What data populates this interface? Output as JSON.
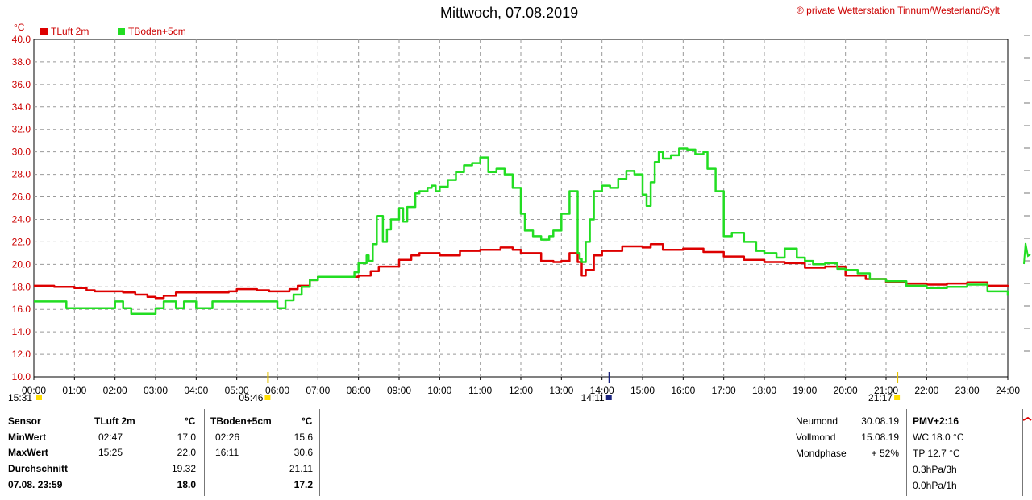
{
  "header": {
    "title": "Mittwoch, 07.08.2019",
    "copyright": "® private Wetterstation Tinnum/Westerland/Sylt"
  },
  "colors": {
    "tluft": "#dd0000",
    "tboden": "#22dd22",
    "grid": "#999999",
    "text_red": "#cc0000"
  },
  "chart_data": {
    "type": "line",
    "ylabel": "°C",
    "ylim": [
      10,
      40
    ],
    "yticks": [
      "10.0",
      "12.0",
      "14.0",
      "16.0",
      "18.0",
      "20.0",
      "22.0",
      "24.0",
      "26.0",
      "28.0",
      "30.0",
      "32.0",
      "34.0",
      "36.0",
      "38.0",
      "40.0"
    ],
    "xlim": [
      0,
      24
    ],
    "xticks": [
      "00:00",
      "01:00",
      "02:00",
      "03:00",
      "04:00",
      "05:00",
      "06:00",
      "07:00",
      "08:00",
      "09:00",
      "10:00",
      "11:00",
      "12:00",
      "13:00",
      "14:00",
      "15:00",
      "16:00",
      "17:00",
      "18:00",
      "19:00",
      "20:00",
      "21:00",
      "22:00",
      "23:00",
      "24:00"
    ],
    "grid": true,
    "legend_position": "top-left",
    "series": [
      {
        "name": "TLuft 2m",
        "color": "#dd0000",
        "x": [
          0,
          0.5,
          1,
          1.3,
          1.5,
          2,
          2.2,
          2.5,
          2.8,
          3,
          3.2,
          3.5,
          4,
          4.5,
          4.8,
          5,
          5.5,
          5.8,
          6,
          6.3,
          6.5,
          6.8,
          7,
          7.5,
          8,
          8.3,
          8.5,
          9,
          9.3,
          9.5,
          10,
          10.5,
          11,
          11.5,
          11.8,
          12,
          12.5,
          12.8,
          13,
          13.2,
          13.4,
          13.5,
          13.6,
          13.8,
          14,
          14.5,
          15,
          15.2,
          15.5,
          16,
          16.5,
          17,
          17.5,
          18,
          18.5,
          19,
          19.5,
          20,
          20.5,
          21,
          21.5,
          22,
          22.5,
          23,
          23.5,
          24
        ],
        "y": [
          18.1,
          18.0,
          17.9,
          17.7,
          17.6,
          17.6,
          17.5,
          17.3,
          17.1,
          17.0,
          17.2,
          17.5,
          17.5,
          17.5,
          17.6,
          17.8,
          17.7,
          17.6,
          17.6,
          17.8,
          18.1,
          18.6,
          18.9,
          18.9,
          19.0,
          19.4,
          19.8,
          20.4,
          20.8,
          21.0,
          20.8,
          21.2,
          21.3,
          21.5,
          21.3,
          21.0,
          20.3,
          20.2,
          20.3,
          21.0,
          20.2,
          19.0,
          19.5,
          20.8,
          21.2,
          21.6,
          21.5,
          21.8,
          21.3,
          21.4,
          21.1,
          20.7,
          20.4,
          20.2,
          20.1,
          19.7,
          19.8,
          19.0,
          18.7,
          18.4,
          18.3,
          18.2,
          18.3,
          18.4,
          18.1,
          18.0
        ]
      },
      {
        "name": "TBoden+5cm",
        "color": "#22dd22",
        "x": [
          0,
          0.7,
          0.8,
          1.2,
          1.5,
          2.0,
          2.2,
          2.4,
          2.8,
          3.0,
          3.2,
          3.5,
          3.7,
          4.0,
          4.2,
          4.4,
          5.0,
          5.5,
          5.8,
          6.0,
          6.2,
          6.4,
          6.6,
          6.8,
          7.0,
          7.5,
          7.8,
          7.9,
          8.0,
          8.1,
          8.2,
          8.25,
          8.35,
          8.45,
          8.6,
          8.7,
          8.8,
          9.0,
          9.1,
          9.2,
          9.4,
          9.5,
          9.7,
          9.8,
          9.9,
          10.0,
          10.2,
          10.4,
          10.6,
          10.8,
          11.0,
          11.2,
          11.4,
          11.6,
          11.8,
          12.0,
          12.1,
          12.3,
          12.5,
          12.7,
          12.8,
          13.0,
          13.2,
          13.4,
          13.45,
          13.5,
          13.6,
          13.7,
          13.8,
          14.0,
          14.2,
          14.4,
          14.6,
          14.8,
          15.0,
          15.1,
          15.2,
          15.3,
          15.4,
          15.5,
          15.7,
          15.9,
          16.1,
          16.3,
          16.5,
          16.6,
          16.8,
          17.0,
          17.2,
          17.5,
          17.8,
          18.0,
          18.3,
          18.5,
          18.8,
          19.0,
          19.2,
          19.5,
          19.8,
          20.0,
          20.3,
          20.6,
          21.0,
          21.5,
          22.0,
          22.5,
          23.0,
          23.5,
          24.0
        ],
        "y": [
          16.7,
          16.7,
          16.1,
          16.1,
          16.1,
          16.7,
          16.1,
          15.6,
          15.6,
          16.1,
          16.7,
          16.1,
          16.7,
          16.1,
          16.1,
          16.7,
          16.7,
          16.7,
          16.7,
          16.1,
          16.8,
          17.3,
          18.0,
          18.6,
          18.9,
          18.9,
          18.9,
          19.3,
          20.1,
          20.1,
          20.8,
          20.3,
          21.8,
          24.3,
          22.0,
          23.1,
          24.0,
          25.0,
          23.8,
          25.1,
          26.3,
          26.5,
          26.8,
          27.0,
          26.5,
          26.9,
          27.5,
          28.2,
          28.8,
          29.0,
          29.5,
          28.2,
          28.5,
          28.0,
          26.8,
          24.5,
          23.0,
          22.5,
          22.2,
          22.5,
          23.0,
          24.5,
          26.5,
          21.0,
          20.5,
          20.2,
          22.0,
          24.0,
          26.5,
          27.0,
          26.8,
          27.6,
          28.3,
          28.0,
          26.2,
          25.2,
          27.3,
          29.1,
          30.0,
          29.4,
          29.7,
          30.3,
          30.2,
          29.8,
          30.0,
          28.5,
          26.5,
          22.5,
          22.8,
          22.0,
          21.2,
          21.0,
          20.6,
          21.4,
          20.6,
          20.3,
          20.0,
          20.1,
          19.6,
          19.5,
          19.2,
          18.7,
          18.5,
          18.1,
          17.9,
          18.0,
          18.2,
          17.6,
          17.2
        ]
      }
    ],
    "markers": [
      {
        "time": "05:46",
        "pos": 5.77,
        "color": "#ffdd00"
      },
      {
        "time": "14:11",
        "pos": 14.18,
        "color": "#1a237e"
      },
      {
        "time": "21:17",
        "pos": 21.28,
        "color": "#ffdd00"
      }
    ],
    "left_time_label": "15:31"
  },
  "stats": {
    "sensor_label": "Sensor",
    "tluft_label": "TLuft 2m",
    "tboden_label": "TBoden+5cm",
    "unit": "°C",
    "rows": [
      {
        "label": "MinWert",
        "t1_time": "02:47",
        "t1_val": "17.0",
        "t2_time": "02:26",
        "t2_val": "15.6"
      },
      {
        "label": "MaxWert",
        "t1_time": "15:25",
        "t1_val": "22.0",
        "t2_time": "16:11",
        "t2_val": "30.6"
      },
      {
        "label": "Durchschnitt",
        "t1_time": "",
        "t1_val": "19.32",
        "t2_time": "",
        "t2_val": "21.11"
      },
      {
        "label": "07.08. 23:59",
        "t1_time": "",
        "t1_val": "18.0",
        "t2_time": "",
        "t2_val": "17.2"
      }
    ]
  },
  "moon": [
    {
      "label": "Neumond",
      "value": "30.08.19"
    },
    {
      "label": "Vollmond",
      "value": "15.08.19"
    },
    {
      "label": "Mondphase",
      "value": "+ 52%"
    }
  ],
  "pmv": {
    "title": "PMV+2:16",
    "lines": [
      "WC 18.0 °C",
      "TP 12.7 °C",
      "0.3hPa/3h",
      "0.0hPa/1h"
    ]
  }
}
